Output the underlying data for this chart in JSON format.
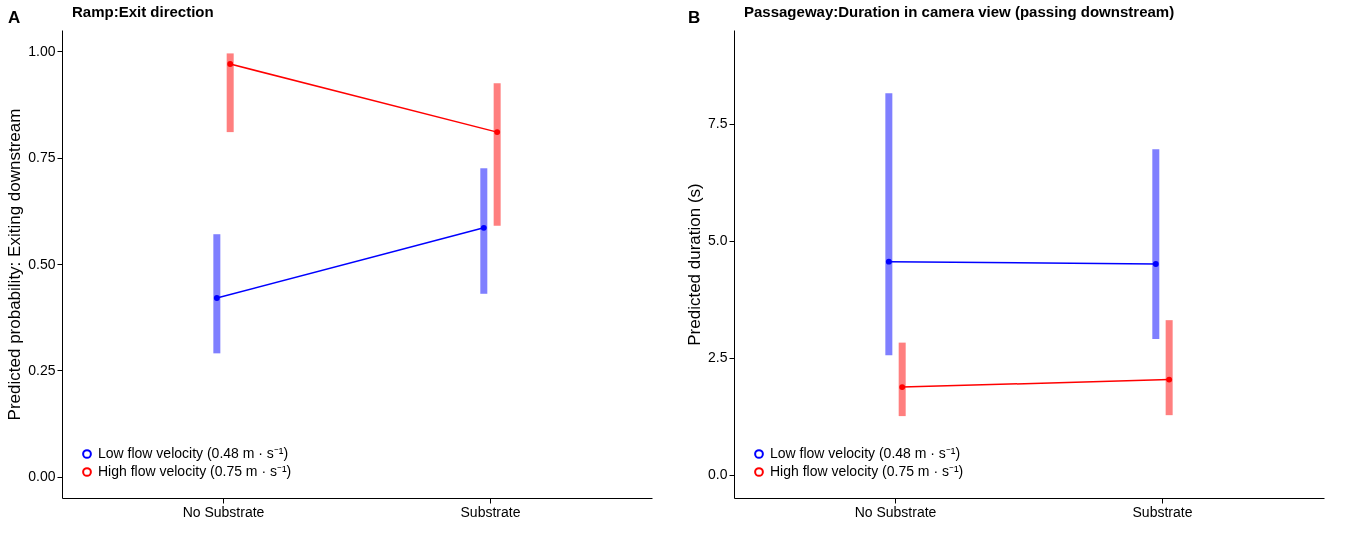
{
  "chart_data": [
    {
      "type": "line",
      "title": "Ramp:Exit direction",
      "annotations": [
        "A"
      ],
      "ylabel": "Predicted probability: Exiting downstream",
      "categories": [
        "No Substrate",
        "Substrate"
      ],
      "ylim": [
        -0.05,
        1.05
      ],
      "yticks": [
        {
          "value": 0,
          "label": "0.00"
        },
        {
          "value": 0.25,
          "label": "0.25"
        },
        {
          "value": 0.5,
          "label": "0.50"
        },
        {
          "value": 0.75,
          "label": "0.75"
        },
        {
          "value": 1,
          "label": "1.00"
        }
      ],
      "grid": false,
      "legend": "bottom left",
      "marker": "circle",
      "series": [
        {
          "name": "Low flow velocity (0.48 m · s⁻¹)",
          "color": "#0000ff",
          "values": [
            0.42,
            0.585
          ],
          "errors": [
            [
              0.29,
              0.57
            ],
            [
              0.43,
              0.725
            ]
          ]
        },
        {
          "name": "High flow velocity (0.75 m · s⁻¹)",
          "color": "#ff0000",
          "values": [
            0.97,
            0.81
          ],
          "errors": [
            [
              0.81,
              0.995
            ],
            [
              0.59,
              0.925
            ]
          ]
        }
      ]
    },
    {
      "type": "line",
      "title": "Passageway:Duration in camera view (passing downstream)",
      "annotations": [
        "B"
      ],
      "ylabel": "Predicted duration (s)",
      "categories": [
        "No Substrate",
        "Substrate"
      ],
      "ylim": [
        -0.5,
        9.5
      ],
      "yticks": [
        {
          "value": 0,
          "label": "0.0"
        },
        {
          "value": 2.5,
          "label": "2.5"
        },
        {
          "value": 5,
          "label": "5.0"
        },
        {
          "value": 7.5,
          "label": "7.5"
        }
      ],
      "grid": false,
      "legend": "bottom left",
      "marker": "circle",
      "series": [
        {
          "name": "Low flow velocity (0.48 m · s⁻¹)",
          "color": "#0000ff",
          "values": [
            4.55,
            4.5
          ],
          "errors": [
            [
              2.55,
              8.15
            ],
            [
              2.9,
              6.95
            ]
          ]
        },
        {
          "name": "High flow velocity (0.75 m · s⁻¹)",
          "color": "#ff0000",
          "values": [
            1.87,
            2.03
          ],
          "errors": [
            [
              1.25,
              2.82
            ],
            [
              1.27,
              3.3
            ]
          ]
        }
      ]
    }
  ]
}
